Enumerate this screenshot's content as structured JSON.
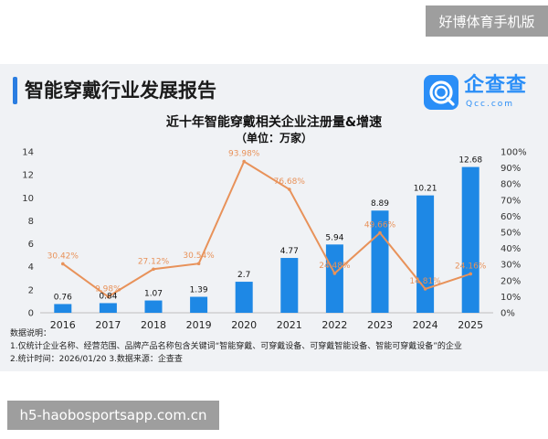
{
  "overlay": {
    "top_text": "好博体育手机版",
    "bottom_text": "h5-haobosportsapp.com.cn"
  },
  "report": {
    "title": "智能穿戴行业发展报告"
  },
  "logo": {
    "name_cn": "企查查",
    "name_en": "Qcc.com",
    "color": "#2a8ef7"
  },
  "notes": {
    "heading": "数据说明：",
    "line1": "1.仅统计企业名称、经营范围、品牌产品名称包含关键词“智能穿戴、可穿戴设备、可穿戴智能设备、智能可穿戴设备”的企业",
    "line2": "2.统计时间：2026/01/20   3.数据来源：企查查"
  },
  "chart_data": {
    "type": "bar",
    "title": "近十年智能穿戴相关企业注册量&增速",
    "subtitle": "（单位：万家）",
    "categories": [
      "2016",
      "2017",
      "2018",
      "2019",
      "2020",
      "2021",
      "2022",
      "2023",
      "2024",
      "2025"
    ],
    "series": [
      {
        "values": [
          0.76,
          0.84,
          1.07,
          1.39,
          2.7,
          4.77,
          5.94,
          8.89,
          10.21,
          12.68
        ],
        "labels": [
          "0.76",
          "0.84",
          "1.07",
          "1.39",
          "2.7",
          "4.77",
          "5.94",
          "8.89",
          "10.21",
          "12.68"
        ],
        "type": "bar",
        "axis": "left",
        "color": "#1e88e5"
      },
      {
        "values": [
          30.42,
          9.98,
          27.12,
          30.54,
          93.98,
          76.68,
          24.48,
          49.66,
          14.81,
          24.16
        ],
        "labels": [
          "30.42%",
          "9.98%",
          "27.12%",
          "30.54%",
          "93.98%",
          "76.68%",
          "24.48%",
          "49.66%",
          "14.81%",
          "24.16%"
        ],
        "type": "line",
        "axis": "right",
        "color": "#e8925a"
      }
    ],
    "y_left": {
      "min": 0,
      "max": 14,
      "ticks": [
        "0",
        "2",
        "4",
        "6",
        "8",
        "10",
        "12",
        "14"
      ]
    },
    "y_right": {
      "min": 0,
      "max": 100,
      "ticks": [
        "0%",
        "10%",
        "20%",
        "30%",
        "40%",
        "50%",
        "60%",
        "70%",
        "80%",
        "90%",
        "100%"
      ]
    },
    "grid": false,
    "legend": "none"
  }
}
